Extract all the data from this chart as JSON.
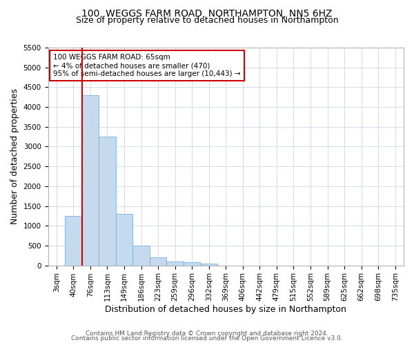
{
  "title1": "100, WEGGS FARM ROAD, NORTHAMPTON, NN5 6HZ",
  "title2": "Size of property relative to detached houses in Northampton",
  "xlabel": "Distribution of detached houses by size in Northampton",
  "ylabel": "Number of detached properties",
  "categories": [
    "3sqm",
    "40sqm",
    "76sqm",
    "113sqm",
    "149sqm",
    "186sqm",
    "223sqm",
    "259sqm",
    "296sqm",
    "332sqm",
    "369sqm",
    "406sqm",
    "442sqm",
    "479sqm",
    "515sqm",
    "552sqm",
    "589sqm",
    "625sqm",
    "662sqm",
    "698sqm",
    "735sqm"
  ],
  "values": [
    0,
    1250,
    4300,
    3250,
    1300,
    500,
    200,
    100,
    75,
    50,
    0,
    0,
    0,
    0,
    0,
    0,
    0,
    0,
    0,
    0,
    0
  ],
  "bar_color": "#c5d9ef",
  "bar_edge_color": "#7aaedb",
  "ylim": [
    0,
    5500
  ],
  "yticks": [
    0,
    500,
    1000,
    1500,
    2000,
    2500,
    3000,
    3500,
    4000,
    4500,
    5000,
    5500
  ],
  "vline_color": "#cc0000",
  "vline_x": 1.5,
  "annotation_line1": "100 WEGGS FARM ROAD: 65sqm",
  "annotation_line2": "← 4% of detached houses are smaller (470)",
  "annotation_line3": "95% of semi-detached houses are larger (10,443) →",
  "annotation_box_color": "#cc0000",
  "footer1": "Contains HM Land Registry data © Crown copyright and database right 2024.",
  "footer2": "Contains public sector information licensed under the Open Government Licence v3.0.",
  "bg_color": "#ffffff",
  "grid_color": "#ccd6e8",
  "title1_fontsize": 10,
  "title2_fontsize": 9,
  "xlabel_fontsize": 9,
  "ylabel_fontsize": 9,
  "tick_fontsize": 7.5,
  "annotation_fontsize": 7.5,
  "footer_fontsize": 6.5
}
